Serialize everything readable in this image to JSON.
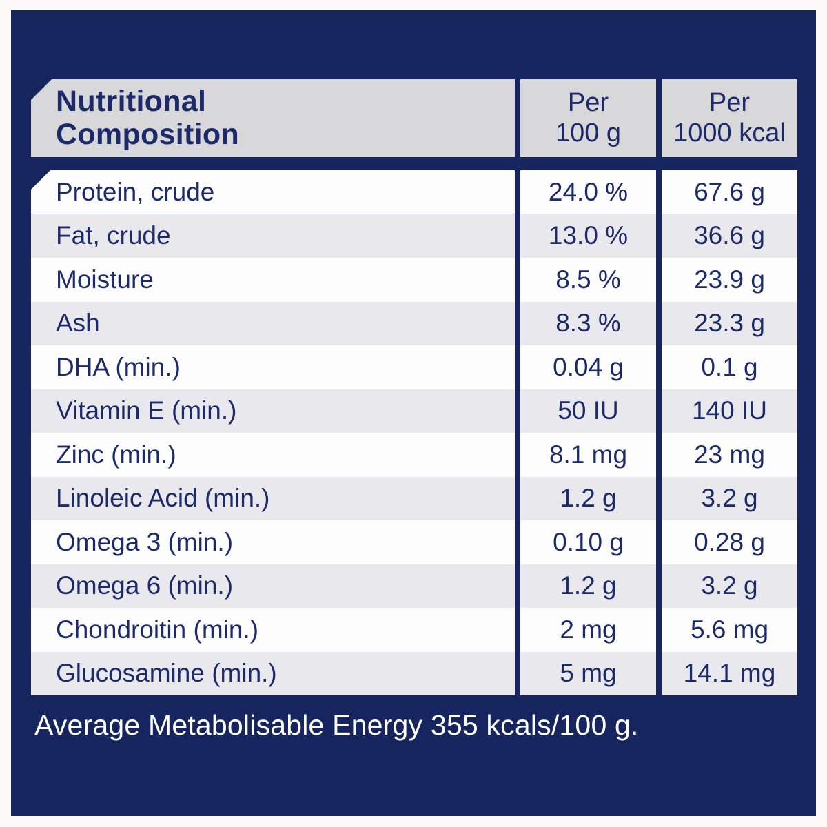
{
  "colors": {
    "page_bg": "#fbfaf8",
    "panel_navy": "#17255e",
    "text_navy": "#1d2a6a",
    "header_gray": "#d8d8db",
    "row_gray": "#e9e9ed",
    "row_white": "#fdfdfe",
    "footer_text_color": "#ffffff"
  },
  "table": {
    "header": {
      "title_line1": "Nutritional",
      "title_line2": "Composition",
      "col_per_100g_line1": "Per",
      "col_per_100g_line2": "100 g",
      "col_per_1000kcal_line1": "Per",
      "col_per_1000kcal_line2": "1000 kcal"
    },
    "rows": [
      {
        "label": "Protein, crude",
        "per_100g": "24.0 %",
        "per_1000kcal": "67.6 g"
      },
      {
        "label": "Fat, crude",
        "per_100g": "13.0 %",
        "per_1000kcal": "36.6 g"
      },
      {
        "label": "Moisture",
        "per_100g": "8.5 %",
        "per_1000kcal": "23.9 g"
      },
      {
        "label": "Ash",
        "per_100g": "8.3 %",
        "per_1000kcal": "23.3 g"
      },
      {
        "label": "DHA (min.)",
        "per_100g": "0.04 g",
        "per_1000kcal": "0.1 g"
      },
      {
        "label": "Vitamin E (min.)",
        "per_100g": "50 IU",
        "per_1000kcal": "140 IU"
      },
      {
        "label": "Zinc (min.)",
        "per_100g": "8.1 mg",
        "per_1000kcal": "23 mg"
      },
      {
        "label": "Linoleic Acid (min.)",
        "per_100g": "1.2 g",
        "per_1000kcal": "3.2 g"
      },
      {
        "label": "Omega 3 (min.)",
        "per_100g": "0.10 g",
        "per_1000kcal": "0.28 g"
      },
      {
        "label": "Omega 6 (min.)",
        "per_100g": "1.2 g",
        "per_1000kcal": "3.2 g"
      },
      {
        "label": "Chondroitin (min.)",
        "per_100g": "2 mg",
        "per_1000kcal": "5.6 mg"
      },
      {
        "label": "Glucosamine (min.)",
        "per_100g": "5 mg",
        "per_1000kcal": "14.1 mg"
      }
    ]
  },
  "footer": {
    "energy_statement": "Average Metabolisable Energy 355 kcals/100 g."
  }
}
